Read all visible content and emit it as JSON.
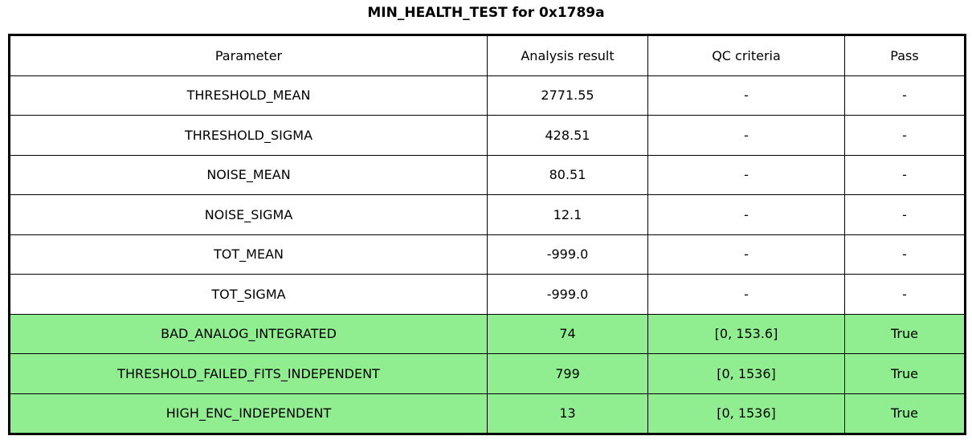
{
  "title": "MIN_HEALTH_TEST for 0x1789a",
  "colors": {
    "pass_row_background": "#90EE90",
    "border": "#000000",
    "background": "#ffffff"
  },
  "chart_data": {
    "type": "table",
    "title": "MIN_HEALTH_TEST for 0x1789a",
    "columns": [
      "Parameter",
      "Analysis result",
      "QC criteria",
      "Pass"
    ],
    "rows": [
      {
        "cells": [
          "THRESHOLD_MEAN",
          "2771.55",
          "-",
          "-"
        ],
        "highlighted": false
      },
      {
        "cells": [
          "THRESHOLD_SIGMA",
          "428.51",
          "-",
          "-"
        ],
        "highlighted": false
      },
      {
        "cells": [
          "NOISE_MEAN",
          "80.51",
          "-",
          "-"
        ],
        "highlighted": false
      },
      {
        "cells": [
          "NOISE_SIGMA",
          "12.1",
          "-",
          "-"
        ],
        "highlighted": false
      },
      {
        "cells": [
          "TOT_MEAN",
          "-999.0",
          "-",
          "-"
        ],
        "highlighted": false
      },
      {
        "cells": [
          "TOT_SIGMA",
          "-999.0",
          "-",
          "-"
        ],
        "highlighted": false
      },
      {
        "cells": [
          "BAD_ANALOG_INTEGRATED",
          "74",
          "[0, 153.6]",
          "True"
        ],
        "highlighted": true
      },
      {
        "cells": [
          "THRESHOLD_FAILED_FITS_INDEPENDENT",
          "799",
          "[0, 1536]",
          "True"
        ],
        "highlighted": true
      },
      {
        "cells": [
          "HIGH_ENC_INDEPENDENT",
          "13",
          "[0, 1536]",
          "True"
        ],
        "highlighted": true
      }
    ],
    "layout": {
      "header_row": true,
      "highlight_means": "row passed QC check"
    }
  }
}
